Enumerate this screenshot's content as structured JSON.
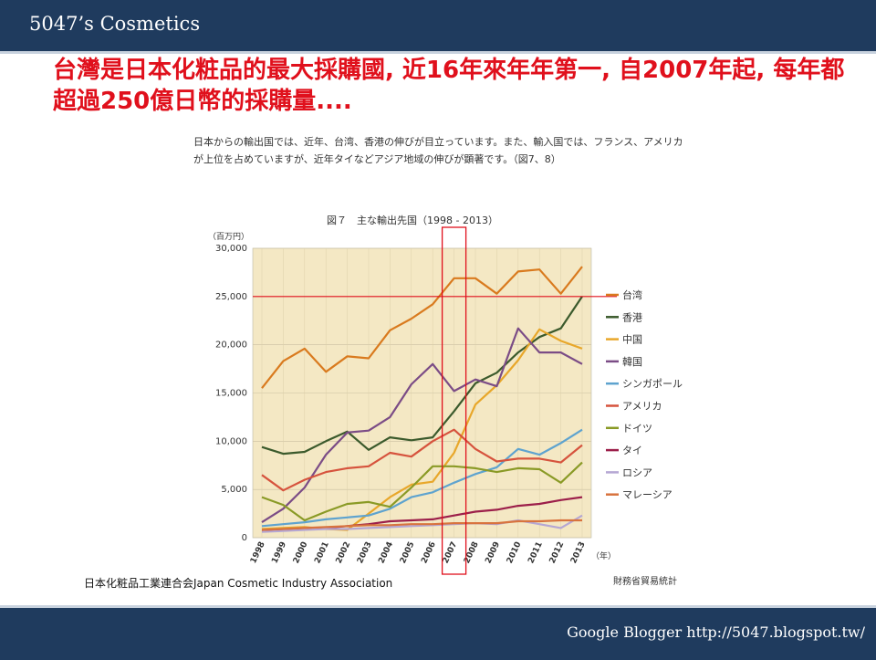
{
  "header": {
    "title": "5047’s Cosmetics"
  },
  "headline": "台灣是日本化粧品的最大採購國, 近16年來年年第一, 自2007年起, 每年都超過250億日幣的採購量....",
  "intro": "日本からの輸出国では、近年、台湾、香港の伸びが目立っています。また、輸入国では、フランス、アメリカが上位を占めていますが、近年タイなどアジア地域の伸びが顕著です。（図7、8）",
  "caption": "日本化粧品工業連合会Japan Cosmetic Industry Association",
  "source": "財務省貿易統計",
  "footer": {
    "text": "Google Blogger  http://5047.blogspot.tw/"
  },
  "colors": {
    "bar": "#1f3b5e",
    "headline": "#e0101c",
    "plot_bg": "#f4e8c4",
    "highlight": "#e0101c"
  },
  "chart_data": {
    "type": "line",
    "title": "図７　主な輸出先国（1998 - 2013）",
    "ylabel": "（百万円）",
    "xlabel": "（年）",
    "x": [
      "1998",
      "1999",
      "2000",
      "2001",
      "2002",
      "2003",
      "2004",
      "2005",
      "2006",
      "2007",
      "2008",
      "2009",
      "2010",
      "2011",
      "2012",
      "2013"
    ],
    "ylim": [
      0,
      30000
    ],
    "yticks": [
      "0",
      "5,000",
      "10,000",
      "15,000",
      "20,000",
      "25,000",
      "30,000"
    ],
    "grid": true,
    "legend_position": "right",
    "reference_line": 25000,
    "highlight_year": "2007",
    "series": [
      {
        "name": "台湾",
        "color": "#d97a1e",
        "values": [
          15500,
          18300,
          19600,
          17200,
          18800,
          18600,
          21500,
          22700,
          24200,
          26900,
          26900,
          25300,
          27600,
          27800,
          25300,
          28100
        ]
      },
      {
        "name": "香港",
        "color": "#3b5a2c",
        "values": [
          9400,
          8700,
          8900,
          10000,
          11000,
          9100,
          10400,
          10100,
          10400,
          13100,
          16000,
          17100,
          19200,
          20800,
          21700,
          25000
        ]
      },
      {
        "name": "中国",
        "color": "#e8a72a",
        "values": [
          900,
          1000,
          1100,
          900,
          800,
          2500,
          4200,
          5500,
          5800,
          8800,
          13800,
          15800,
          18400,
          21600,
          20400,
          19600
        ]
      },
      {
        "name": "韓国",
        "color": "#7b4c86",
        "values": [
          1600,
          3000,
          5200,
          8600,
          10900,
          11100,
          12500,
          15900,
          18000,
          15200,
          16400,
          15700,
          21700,
          19200,
          19200,
          18000
        ]
      },
      {
        "name": "シンガポール",
        "color": "#5ea3cf",
        "values": [
          1200,
          1400,
          1600,
          1900,
          2100,
          2300,
          3000,
          4200,
          4700,
          5700,
          6600,
          7300,
          9200,
          8600,
          9800,
          11200
        ]
      },
      {
        "name": "アメリカ",
        "color": "#d6533d",
        "values": [
          6500,
          4900,
          6000,
          6800,
          7200,
          7400,
          8800,
          8400,
          10000,
          11200,
          9200,
          7900,
          8200,
          8200,
          7800,
          9600
        ]
      },
      {
        "name": "ドイツ",
        "color": "#8a9a26",
        "values": [
          4200,
          3400,
          1800,
          2700,
          3500,
          3700,
          3200,
          5200,
          7400,
          7400,
          7200,
          6800,
          7200,
          7100,
          5700,
          7800
        ]
      },
      {
        "name": "タイ",
        "color": "#9c1f4a",
        "values": [
          700,
          800,
          900,
          1000,
          1200,
          1400,
          1700,
          1800,
          1900,
          2300,
          2700,
          2900,
          3300,
          3500,
          3900,
          4200
        ]
      },
      {
        "name": "ロシア",
        "color": "#b5a7d3",
        "values": [
          600,
          700,
          800,
          900,
          900,
          1000,
          1100,
          1200,
          1300,
          1400,
          1500,
          1400,
          1800,
          1400,
          1000,
          2300
        ]
      },
      {
        "name": "マレーシア",
        "color": "#d8733e",
        "values": [
          800,
          900,
          1000,
          1100,
          1200,
          1300,
          1300,
          1400,
          1400,
          1500,
          1500,
          1500,
          1700,
          1700,
          1800,
          1800
        ]
      }
    ]
  }
}
